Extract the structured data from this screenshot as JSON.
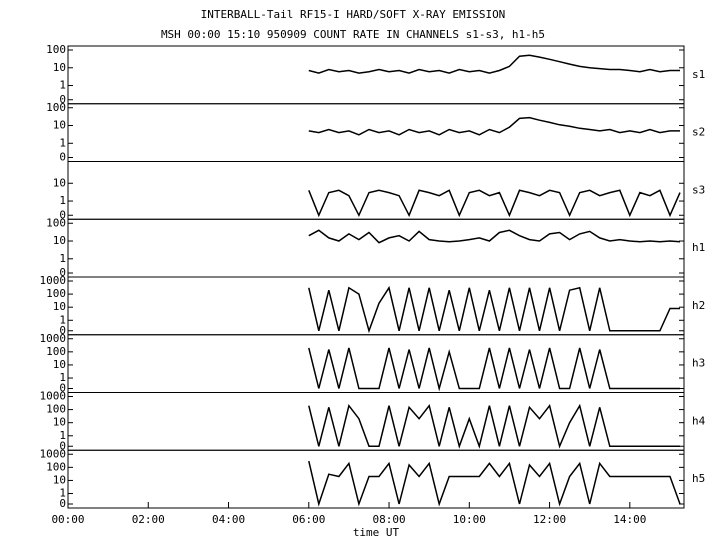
{
  "chart_data": {
    "type": "line",
    "title": "INTERBALL-Tail RF15-I HARD/SOFT X-RAY EMISSION",
    "subtitle": "MSH 00:00 15:10 950909  COUNT RATE IN CHANNELS s1-s3, h1-h5",
    "xlabel": "time UT",
    "yscale": "symlog",
    "xlim": [
      0,
      15.35
    ],
    "xticks": [
      {
        "value": 0,
        "label": "00:00"
      },
      {
        "value": 2,
        "label": "02:00"
      },
      {
        "value": 4,
        "label": "04:00"
      },
      {
        "value": 6,
        "label": "06:00"
      },
      {
        "value": 8,
        "label": "08:00"
      },
      {
        "value": 10,
        "label": "10:00"
      },
      {
        "value": 12,
        "label": "12:00"
      },
      {
        "value": 14,
        "label": "14:00"
      }
    ],
    "x": [
      6.0,
      6.25,
      6.5,
      6.75,
      7.0,
      7.25,
      7.5,
      7.75,
      8.0,
      8.25,
      8.5,
      8.75,
      9.0,
      9.25,
      9.5,
      9.75,
      10.0,
      10.25,
      10.5,
      10.75,
      11.0,
      11.25,
      11.5,
      11.75,
      12.0,
      12.25,
      12.5,
      12.75,
      13.0,
      13.25,
      13.5,
      13.75,
      14.0,
      14.25,
      14.5,
      14.75,
      15.0,
      15.25
    ],
    "series": [
      {
        "name": "s1",
        "color": "#000000",
        "ylim": [
          0,
          100
        ],
        "yticks": [
          0,
          1,
          10,
          100
        ],
        "values": [
          7,
          5,
          8,
          6,
          7,
          5,
          6,
          8,
          6,
          7,
          5,
          8,
          6,
          7,
          5,
          8,
          6,
          7,
          5,
          7,
          12,
          45,
          50,
          40,
          30,
          22,
          16,
          12,
          10,
          9,
          8,
          8,
          7,
          6,
          8,
          6,
          7,
          7
        ]
      },
      {
        "name": "s2",
        "color": "#000000",
        "ylim": [
          0,
          100
        ],
        "yticks": [
          0,
          1,
          10,
          100
        ],
        "values": [
          5,
          4,
          6,
          4,
          5,
          3,
          6,
          4,
          5,
          3,
          6,
          4,
          5,
          3,
          6,
          4,
          5,
          3,
          6,
          4,
          8,
          25,
          28,
          20,
          15,
          11,
          9,
          7,
          6,
          5,
          6,
          4,
          5,
          4,
          6,
          4,
          5,
          5
        ]
      },
      {
        "name": "s3",
        "color": "#000000",
        "ylim": [
          0,
          100
        ],
        "yticks": [
          0,
          1,
          10
        ],
        "values": [
          4,
          0,
          3,
          4,
          2,
          0,
          3,
          4,
          3,
          2,
          0,
          4,
          3,
          2,
          4,
          0,
          3,
          4,
          2,
          3,
          0,
          4,
          3,
          2,
          4,
          3,
          0,
          3,
          4,
          2,
          3,
          4,
          0,
          3,
          2,
          4,
          0,
          3
        ]
      },
      {
        "name": "h1",
        "color": "#000000",
        "ylim": [
          0,
          100
        ],
        "yticks": [
          0,
          1,
          10,
          100
        ],
        "values": [
          20,
          40,
          15,
          10,
          25,
          12,
          30,
          8,
          15,
          20,
          10,
          35,
          12,
          10,
          9,
          10,
          12,
          15,
          10,
          30,
          40,
          20,
          12,
          10,
          25,
          30,
          12,
          25,
          35,
          15,
          10,
          12,
          10,
          9,
          10,
          9,
          10,
          9
        ]
      },
      {
        "name": "h2",
        "color": "#000000",
        "ylim": [
          0,
          1000
        ],
        "yticks": [
          0,
          1,
          10,
          100,
          1000
        ],
        "values": [
          300,
          0,
          200,
          0,
          300,
          100,
          0,
          20,
          300,
          0,
          300,
          0,
          300,
          0,
          200,
          0,
          300,
          0,
          200,
          0,
          300,
          0,
          300,
          0,
          300,
          0,
          200,
          300,
          0,
          300,
          0,
          0,
          0,
          0,
          0,
          0,
          8,
          8
        ]
      },
      {
        "name": "h3",
        "color": "#000000",
        "ylim": [
          0,
          1000
        ],
        "yticks": [
          0,
          1,
          10,
          100,
          1000
        ],
        "values": [
          200,
          0,
          150,
          0,
          200,
          0,
          0,
          0,
          200,
          0,
          150,
          0,
          200,
          0,
          100,
          0,
          0,
          0,
          200,
          0,
          200,
          0,
          150,
          0,
          200,
          0,
          0,
          200,
          0,
          150,
          0,
          0,
          0,
          0,
          0,
          0,
          0,
          0
        ]
      },
      {
        "name": "h4",
        "color": "#000000",
        "ylim": [
          0,
          1000
        ],
        "yticks": [
          0,
          1,
          10,
          100,
          1000
        ],
        "values": [
          200,
          0,
          150,
          0,
          200,
          20,
          0,
          0,
          200,
          0,
          150,
          20,
          200,
          0,
          150,
          0,
          20,
          0,
          200,
          0,
          200,
          0,
          150,
          20,
          200,
          0,
          10,
          200,
          0,
          150,
          0,
          0,
          0,
          0,
          0,
          0,
          0,
          0
        ]
      },
      {
        "name": "h5",
        "color": "#000000",
        "ylim": [
          0,
          1000
        ],
        "yticks": [
          0,
          1,
          10,
          100,
          1000
        ],
        "values": [
          300,
          0,
          30,
          20,
          200,
          0,
          20,
          20,
          200,
          0,
          150,
          20,
          200,
          0,
          20,
          20,
          20,
          20,
          200,
          20,
          200,
          0,
          150,
          20,
          200,
          0,
          20,
          200,
          0,
          200,
          20,
          20,
          20,
          20,
          20,
          20,
          20,
          0
        ]
      }
    ]
  }
}
